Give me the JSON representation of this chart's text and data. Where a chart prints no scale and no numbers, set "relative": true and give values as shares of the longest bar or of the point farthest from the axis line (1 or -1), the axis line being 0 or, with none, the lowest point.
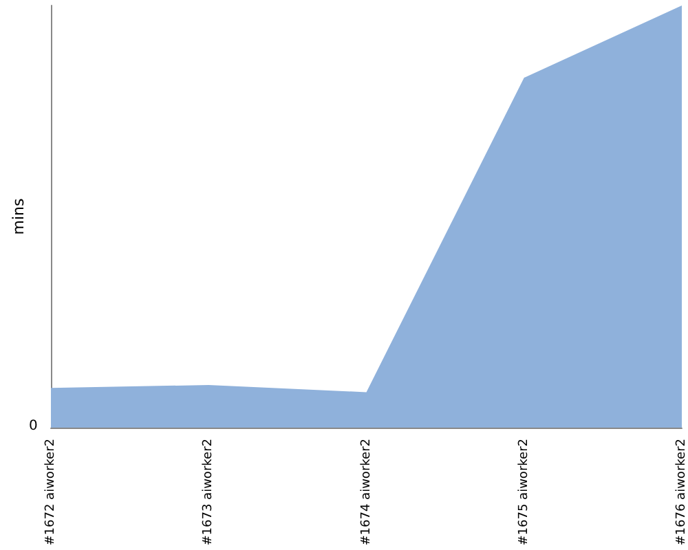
{
  "chart_data": {
    "type": "area",
    "relative": true,
    "ylabel": "mins",
    "categories": [
      "#1672 aiworker2",
      "#1673 aiworker2",
      "#1674 aiworker2",
      "#1675 aiworker2",
      "#1676 aiworker2"
    ],
    "series": [
      {
        "color": "#8fb1db",
        "values": [
          0.094,
          0.101,
          0.084,
          0.829,
          1
        ]
      }
    ],
    "annotations": [
      "0"
    ],
    "grid": false
  }
}
